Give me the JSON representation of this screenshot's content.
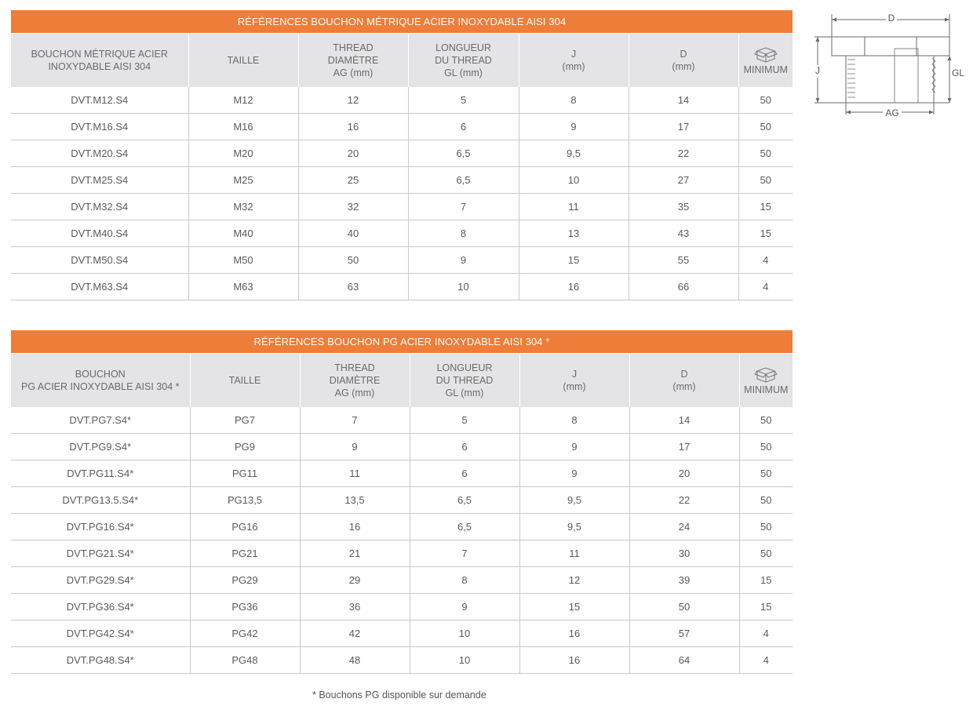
{
  "metric_table": {
    "title": "RÉFÉRENCES BOUCHON MÉTRIQUE ACIER INOXYDABLE AISI 304",
    "headers": [
      [
        "BOUCHON MÉTRIQUE ACIER",
        "INOXYDABLE AISI 304"
      ],
      [
        "TAILLE"
      ],
      [
        "THREAD",
        "DIAMÈTRE",
        "AG (mm)"
      ],
      [
        "LONGUEUR",
        "DU THREAD",
        "GL (mm)"
      ],
      [
        "J",
        "(mm)"
      ],
      [
        "D",
        "(mm)"
      ],
      [
        "MINIMUM"
      ]
    ],
    "min_icon": "box-icon",
    "rows": [
      [
        "DVT.M12.S4",
        "M12",
        "12",
        "5",
        "8",
        "14",
        "50"
      ],
      [
        "DVT.M16.S4",
        "M16",
        "16",
        "6",
        "9",
        "17",
        "50"
      ],
      [
        "DVT.M20.S4",
        "M20",
        "20",
        "6,5",
        "9,5",
        "22",
        "50"
      ],
      [
        "DVT.M25.S4",
        "M25",
        "25",
        "6,5",
        "10",
        "27",
        "50"
      ],
      [
        "DVT.M32.S4",
        "M32",
        "32",
        "7",
        "11",
        "35",
        "15"
      ],
      [
        "DVT.M40.S4",
        "M40",
        "40",
        "8",
        "13",
        "43",
        "15"
      ],
      [
        "DVT.M50.S4",
        "M50",
        "50",
        "9",
        "15",
        "55",
        "4"
      ],
      [
        "DVT.M63.S4",
        "M63",
        "63",
        "10",
        "16",
        "66",
        "4"
      ]
    ]
  },
  "pg_table": {
    "title": "RÉFÉRENCES BOUCHON PG ACIER INOXYDABLE AISI 304 *",
    "headers": [
      [
        "BOUCHON",
        "PG ACIER INOXYDABLE AISI 304 *"
      ],
      [
        "TAILLE"
      ],
      [
        "THREAD",
        "DIAMÈTRE",
        "AG (mm)"
      ],
      [
        "LONGUEUR",
        "DU THREAD",
        "GL (mm)"
      ],
      [
        "J",
        "(mm)"
      ],
      [
        "D",
        "(mm)"
      ],
      [
        "MINIMUM"
      ]
    ],
    "min_icon": "box-icon",
    "rows": [
      [
        "DVT.PG7.S4*",
        "PG7",
        "7",
        "5",
        "8",
        "14",
        "50"
      ],
      [
        "DVT.PG9.S4*",
        "PG9",
        "9",
        "6",
        "9",
        "17",
        "50"
      ],
      [
        "DVT.PG11.S4*",
        "PG11",
        "11",
        "6",
        "9",
        "20",
        "50"
      ],
      [
        "DVT.PG13.5.S4*",
        "PG13,5",
        "13,5",
        "6,5",
        "9,5",
        "22",
        "50"
      ],
      [
        "DVT.PG16.S4*",
        "PG16",
        "16",
        "6,5",
        "9,5",
        "24",
        "50"
      ],
      [
        "DVT.PG21.S4*",
        "PG21",
        "21",
        "7",
        "11",
        "30",
        "50"
      ],
      [
        "DVT.PG29.S4*",
        "PG29",
        "29",
        "8",
        "12",
        "39",
        "15"
      ],
      [
        "DVT.PG36.S4*",
        "PG36",
        "36",
        "9",
        "15",
        "50",
        "15"
      ],
      [
        "DVT.PG42.S4*",
        "PG42",
        "42",
        "10",
        "16",
        "57",
        "4"
      ],
      [
        "DVT.PG48.S4*",
        "PG48",
        "48",
        "10",
        "16",
        "64",
        "4"
      ]
    ]
  },
  "diagram": {
    "labels": {
      "d": "D",
      "j": "J",
      "gl": "GL",
      "ag": "AG"
    }
  },
  "footnote": "* Bouchons PG disponible sur demande",
  "colors": {
    "accent": "#ee7d3a",
    "header_bg": "#e4e4e6",
    "rule": "#c9c9c9"
  }
}
